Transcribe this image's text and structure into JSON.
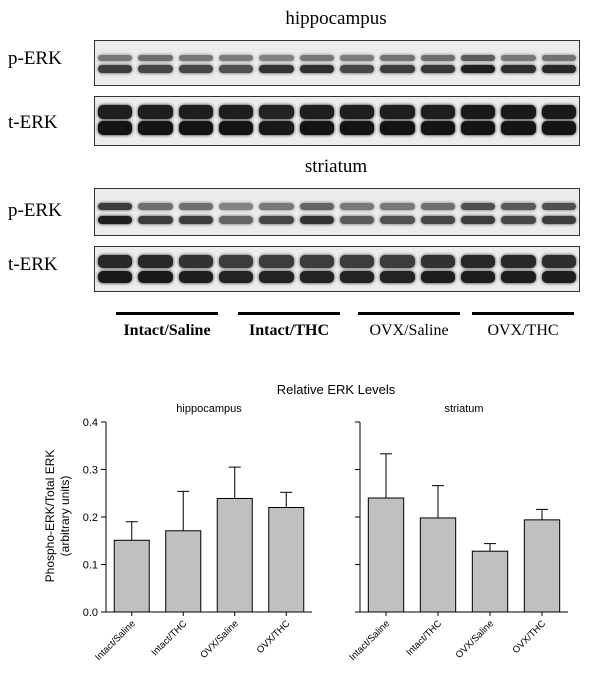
{
  "blot": {
    "regions": [
      {
        "title": "hippocampus",
        "lanes": [
          {
            "label": "p-ERK",
            "type": "p-ERK"
          },
          {
            "label": "t-ERK",
            "type": "t-ERK"
          }
        ]
      },
      {
        "title": "striatum",
        "lanes": [
          {
            "label": "p-ERK",
            "type": "p-ERK"
          },
          {
            "label": "t-ERK",
            "type": "t-ERK"
          }
        ]
      }
    ],
    "groups": [
      "Intact/Saline",
      "Intact/THC",
      "OVX/Saline",
      "OVX/THC"
    ]
  },
  "chart_data": {
    "type": "bar",
    "title": "Relative ERK Levels",
    "ylabel": "Phospho-ERK/Total ERK (arbitrary units)",
    "ylabel_lines": [
      "Phospho-ERK/Total ERK",
      "(arbitrary units)"
    ],
    "ylim": [
      0,
      0.4
    ],
    "yticks": [
      "0.0",
      "0.1",
      "0.2",
      "0.3",
      "0.4"
    ],
    "categories": [
      "Intact/Saline",
      "Intact/THC",
      "OVX/Saline",
      "OVX/THC"
    ],
    "bar_color": "#c0c0c0",
    "grid": false,
    "panels": [
      {
        "subtitle": "hippocampus",
        "values": [
          0.151,
          0.171,
          0.239,
          0.22
        ],
        "errors": [
          0.039,
          0.083,
          0.066,
          0.032
        ]
      },
      {
        "subtitle": "striatum",
        "values": [
          0.24,
          0.198,
          0.128,
          0.194
        ],
        "errors": [
          0.093,
          0.068,
          0.016,
          0.022
        ]
      }
    ]
  }
}
